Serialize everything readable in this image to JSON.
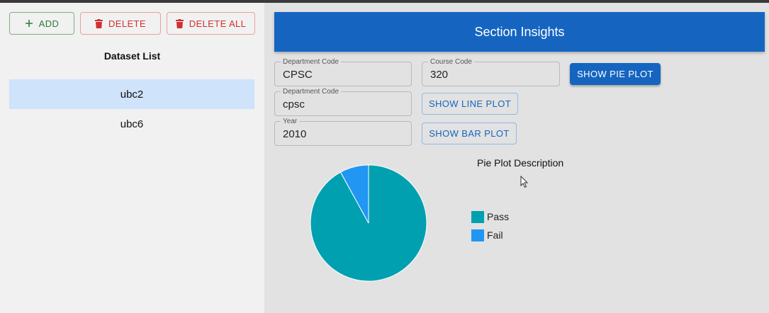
{
  "left": {
    "buttons": {
      "add": "ADD",
      "delete": "DELETE",
      "delete_all": "DELETE ALL"
    },
    "dataset_list_title": "Dataset List",
    "datasets": [
      {
        "name": "ubc2",
        "selected": true
      },
      {
        "name": "ubc6",
        "selected": false
      }
    ]
  },
  "right": {
    "header_title": "Section Insights",
    "fields": {
      "dept1": {
        "label": "Department Code",
        "value": "CPSC"
      },
      "course": {
        "label": "Course Code",
        "value": "320"
      },
      "dept2": {
        "label": "Department Code",
        "value": "cpsc"
      },
      "year": {
        "label": "Year",
        "value": "2010"
      }
    },
    "buttons": {
      "pie": "SHOW PIE PLOT",
      "line": "SHOW LINE PLOT",
      "bar": "SHOW BAR PLOT"
    },
    "pie_description": "Pie Plot Description"
  },
  "colors": {
    "pass": "#00a0b0",
    "fail": "#2196f3",
    "primary": "#1565c0"
  },
  "chart_data": {
    "type": "pie",
    "categories": [
      "Pass",
      "Fail"
    ],
    "values": [
      92,
      8
    ],
    "legend_position": "right",
    "colors": [
      "#00a0b0",
      "#2196f3"
    ]
  }
}
